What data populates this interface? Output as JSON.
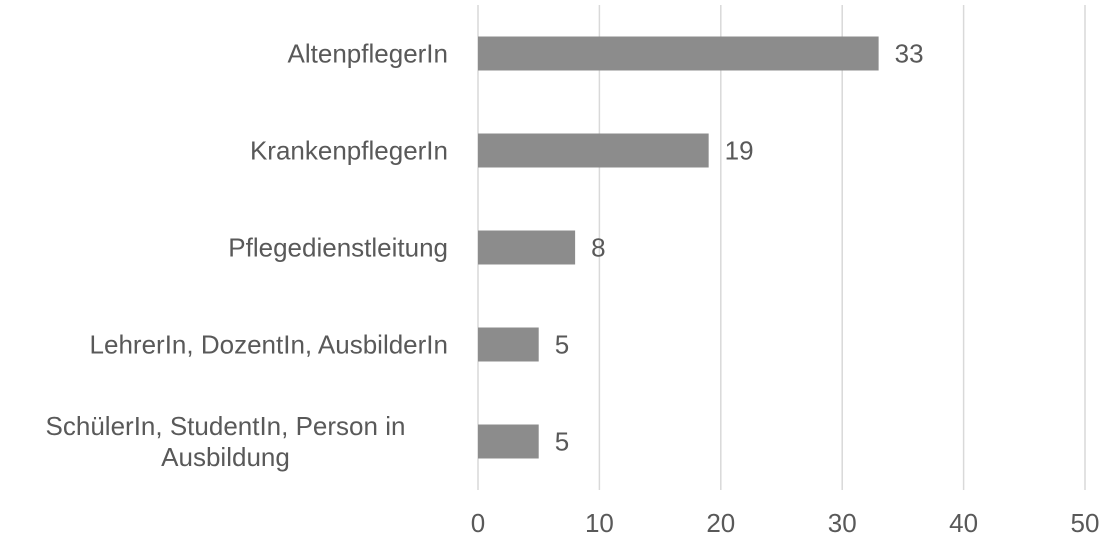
{
  "chart_data": {
    "type": "barh",
    "categories": [
      "AltenpflegerIn",
      "KrankenpflegerIn",
      "Pflegedienstleitung",
      "LehrerIn, DozentIn, AusbilderIn",
      "SchülerIn, StudentIn, Person in Ausbildung"
    ],
    "values": [
      33,
      19,
      8,
      5,
      5
    ],
    "color": "#8c8c8c",
    "xlim": [
      0,
      50
    ],
    "xticks": [
      0,
      10,
      20,
      30,
      40,
      50
    ],
    "grid": true
  }
}
